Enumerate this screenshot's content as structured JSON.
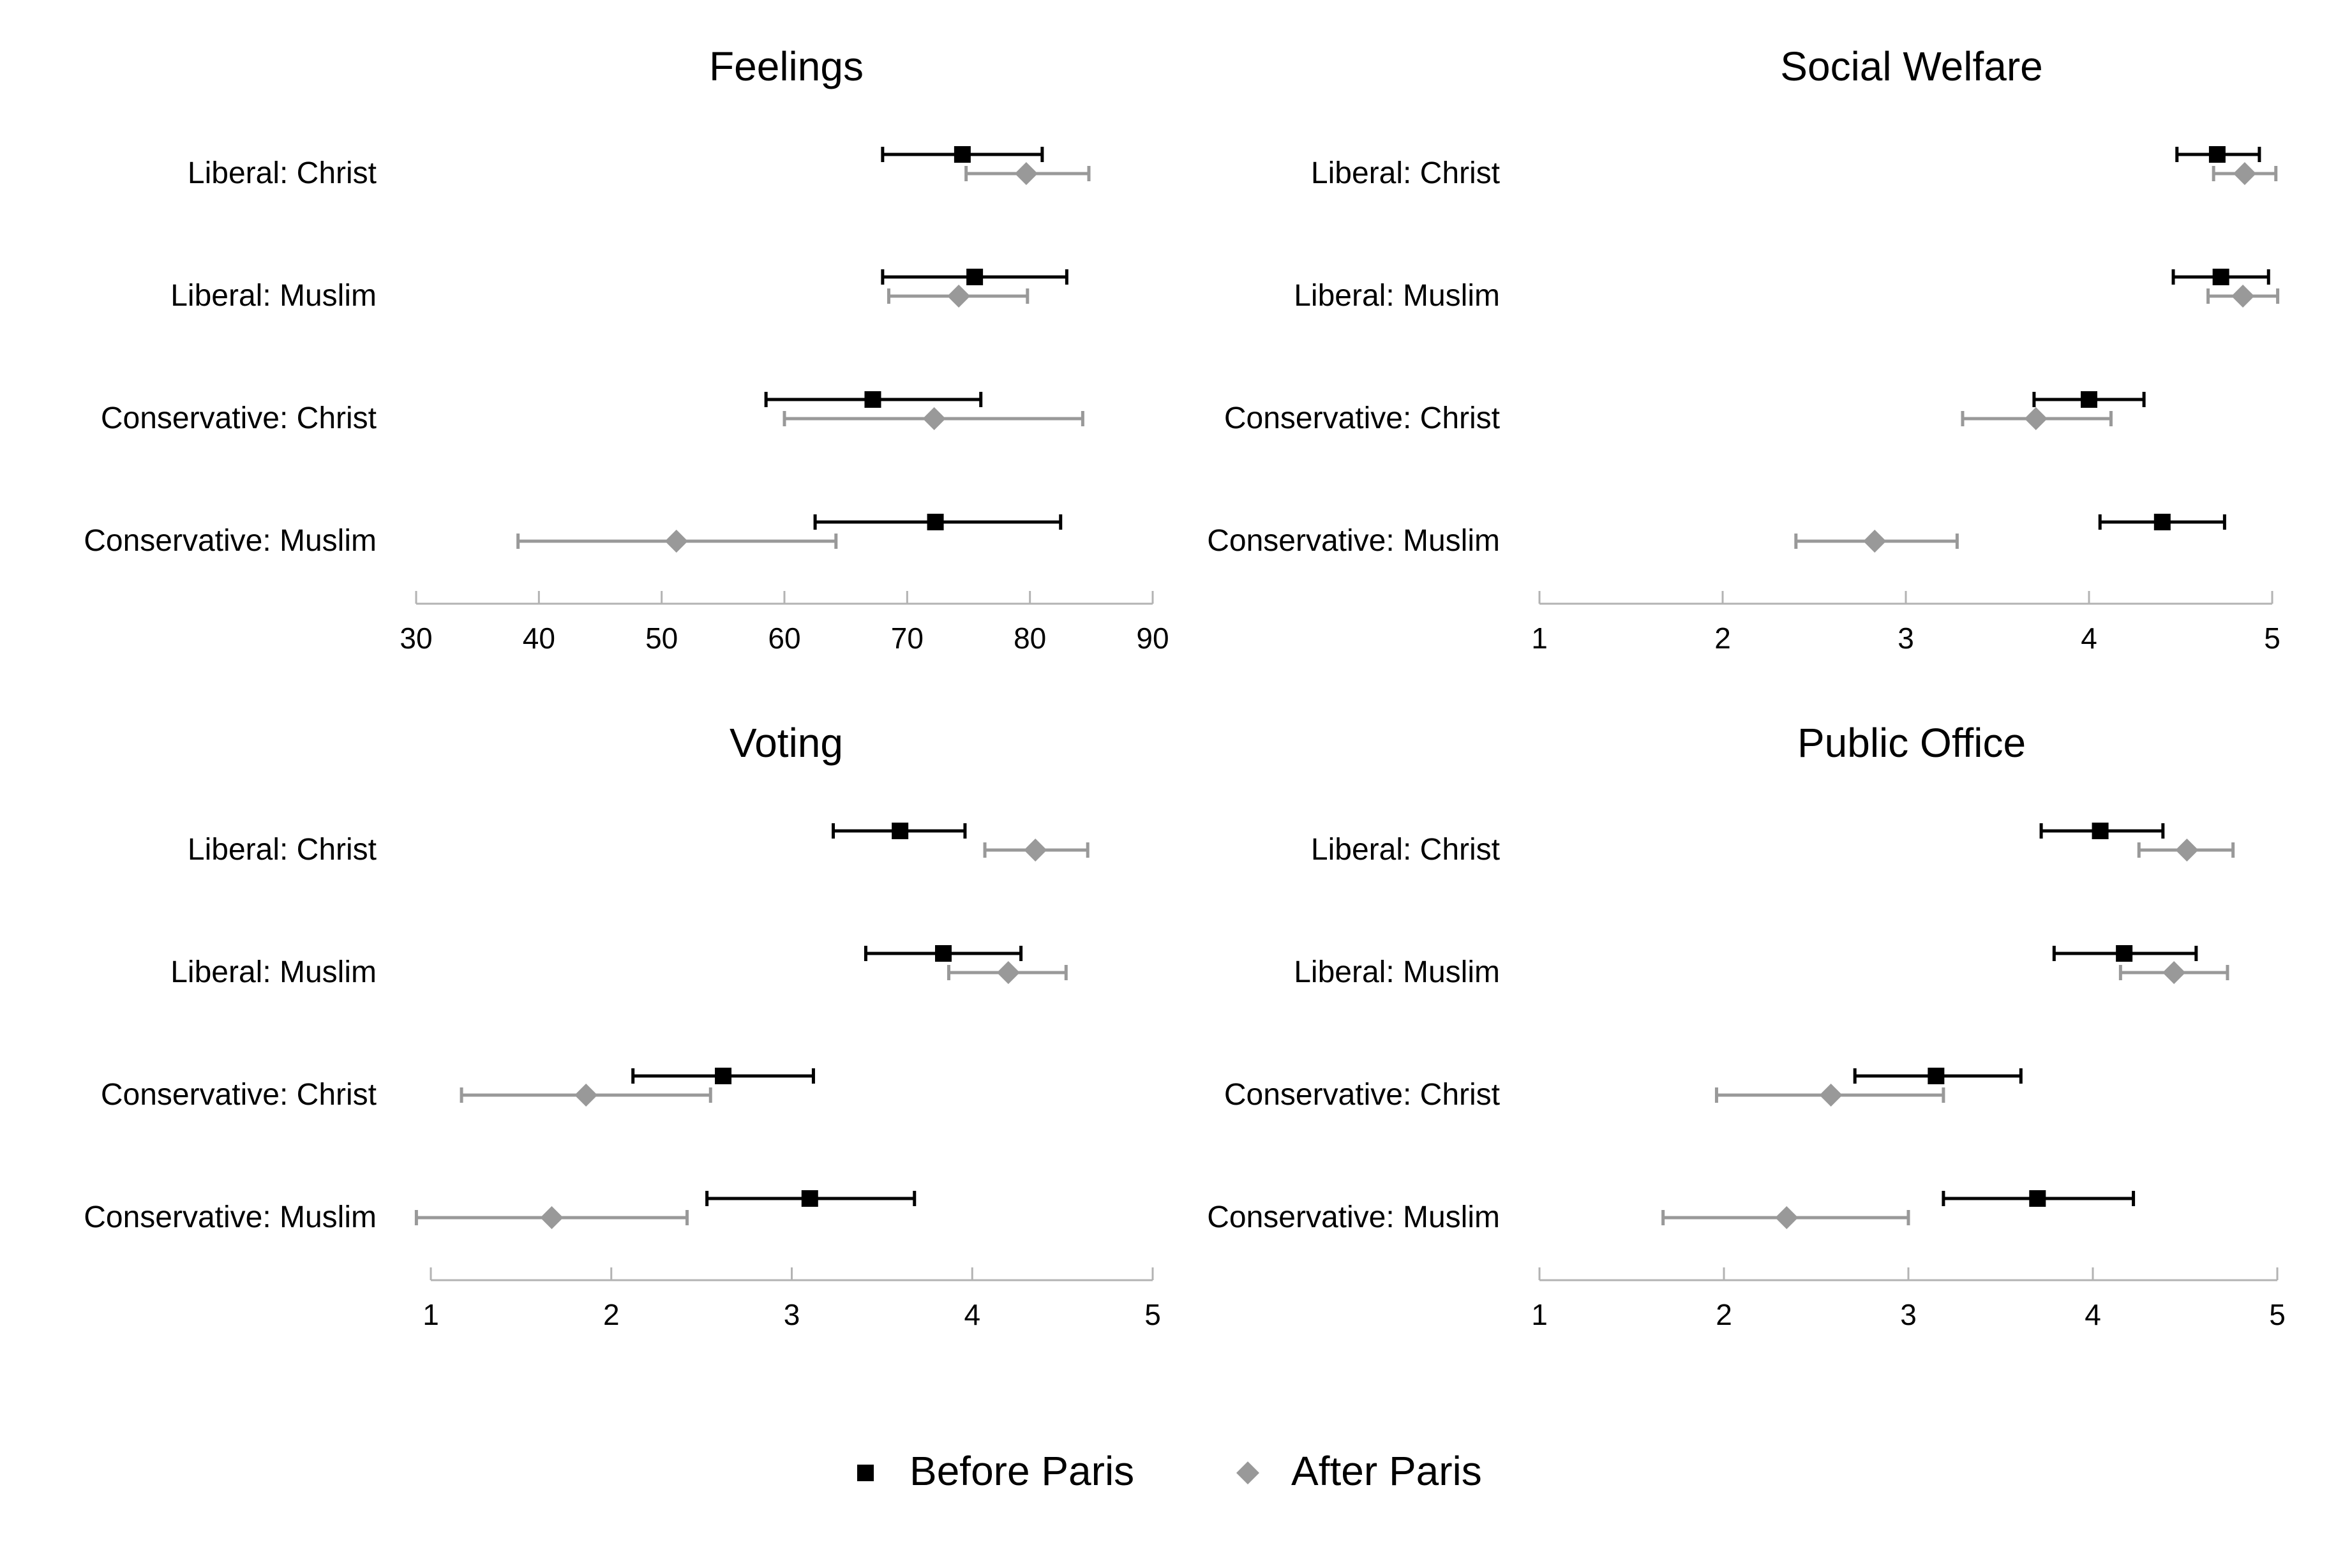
{
  "chart_data": [
    {
      "type": "scatter",
      "subtype": "dot-and-whisker",
      "title": "Feelings",
      "categories": [
        "Liberal: Christ",
        "Liberal: Muslim",
        "Conservative: Christ",
        "Conservative: Muslim"
      ],
      "xlim": [
        30,
        90
      ],
      "xticks": [
        30,
        40,
        50,
        60,
        70,
        80,
        90
      ],
      "series": [
        {
          "name": "Before Paris",
          "color": "#000000",
          "marker": "square",
          "values": [
            74.5,
            75.5,
            67.2,
            72.3
          ],
          "ci_low": [
            68.0,
            68.0,
            58.5,
            62.5
          ],
          "ci_high": [
            81.0,
            83.0,
            76.0,
            82.5
          ]
        },
        {
          "name": "After Paris",
          "color": "#999999",
          "marker": "diamond",
          "values": [
            79.7,
            74.2,
            72.2,
            51.2
          ],
          "ci_low": [
            74.8,
            68.5,
            60.0,
            38.3
          ],
          "ci_high": [
            84.8,
            79.8,
            84.3,
            64.2
          ]
        }
      ]
    },
    {
      "type": "scatter",
      "subtype": "dot-and-whisker",
      "title": "Social Welfare",
      "categories": [
        "Liberal: Christ",
        "Liberal: Muslim",
        "Conservative: Christ",
        "Conservative: Muslim"
      ],
      "xlim": [
        1,
        5
      ],
      "xticks": [
        1,
        2,
        3,
        4,
        5
      ],
      "series": [
        {
          "name": "Before Paris",
          "color": "#000000",
          "marker": "square",
          "values": [
            4.7,
            4.72,
            4.0,
            4.4
          ],
          "ci_low": [
            4.48,
            4.46,
            3.7,
            4.06
          ],
          "ci_high": [
            4.93,
            4.98,
            4.3,
            4.74
          ]
        },
        {
          "name": "After Paris",
          "color": "#999999",
          "marker": "diamond",
          "values": [
            4.85,
            4.84,
            3.71,
            2.83
          ],
          "ci_low": [
            4.68,
            4.65,
            3.31,
            2.4
          ],
          "ci_high": [
            5.02,
            5.03,
            4.12,
            3.28
          ]
        }
      ]
    },
    {
      "type": "scatter",
      "subtype": "dot-and-whisker",
      "title": "Voting",
      "categories": [
        "Liberal: Christ",
        "Liberal: Muslim",
        "Conservative: Christ",
        "Conservative: Muslim"
      ],
      "xlim": [
        1,
        5
      ],
      "xticks": [
        1,
        2,
        3,
        4,
        5
      ],
      "series": [
        {
          "name": "Before Paris",
          "color": "#000000",
          "marker": "square",
          "values": [
            3.6,
            3.84,
            2.62,
            3.1
          ],
          "ci_low": [
            3.23,
            3.41,
            2.12,
            2.53
          ],
          "ci_high": [
            3.96,
            4.27,
            3.12,
            3.68
          ]
        },
        {
          "name": "After Paris",
          "color": "#999999",
          "marker": "diamond",
          "values": [
            4.35,
            4.2,
            1.86,
            1.67
          ],
          "ci_low": [
            4.07,
            3.87,
            1.17,
            0.92
          ],
          "ci_high": [
            4.64,
            4.52,
            2.55,
            2.42
          ]
        }
      ]
    },
    {
      "type": "scatter",
      "subtype": "dot-and-whisker",
      "title": "Public Office",
      "categories": [
        "Liberal: Christ",
        "Liberal: Muslim",
        "Conservative: Christ",
        "Conservative: Muslim"
      ],
      "xlim": [
        1,
        5
      ],
      "xticks": [
        1,
        2,
        3,
        4,
        5
      ],
      "series": [
        {
          "name": "Before Paris",
          "color": "#000000",
          "marker": "square",
          "values": [
            4.04,
            4.17,
            3.15,
            3.7
          ],
          "ci_low": [
            3.72,
            3.79,
            2.71,
            3.19
          ],
          "ci_high": [
            4.38,
            4.56,
            3.61,
            4.22
          ]
        },
        {
          "name": "After Paris",
          "color": "#999999",
          "marker": "diamond",
          "values": [
            4.51,
            4.44,
            2.58,
            2.34
          ],
          "ci_low": [
            4.25,
            4.15,
            1.96,
            1.67
          ],
          "ci_high": [
            4.76,
            4.73,
            3.19,
            3.0
          ]
        }
      ]
    }
  ],
  "legend": {
    "position": "bottom-center",
    "items": [
      {
        "label": "Before Paris",
        "color": "#000000",
        "marker": "square"
      },
      {
        "label": "After Paris",
        "color": "#999999",
        "marker": "diamond"
      }
    ]
  }
}
